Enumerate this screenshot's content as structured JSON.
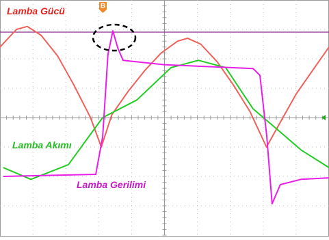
{
  "chart_data": {
    "type": "line",
    "xlim": [
      0,
      10
    ],
    "ylim": [
      -4,
      4
    ],
    "series": [
      {
        "name": "Lamba Gücü",
        "color": "#f0605a",
        "x": [
          0,
          0.5,
          0.83,
          1.25,
          1.75,
          2.25,
          2.75,
          3.08,
          3.4,
          3.9,
          4.4,
          4.9,
          5.4,
          5.7,
          6.1,
          6.6,
          7.1,
          7.6,
          8.1,
          8.5,
          9.0,
          9.5,
          10
        ],
        "values": [
          2.4,
          3.0,
          3.1,
          2.8,
          2.1,
          1.1,
          0.0,
          -1.0,
          0.1,
          0.9,
          1.6,
          2.2,
          2.6,
          2.7,
          2.5,
          1.9,
          1.1,
          0.2,
          -1.0,
          -0.2,
          0.8,
          1.6,
          2.4
        ]
      },
      {
        "name": "Lamba Akımı",
        "color": "#22cc22",
        "x": [
          0.1,
          0.94,
          2.08,
          3.12,
          4.16,
          5.2,
          6.03,
          6.86,
          7.69,
          8.32,
          9.15,
          10
        ],
        "values": [
          -1.7,
          -2.1,
          -1.6,
          0.0,
          0.6,
          1.7,
          1.95,
          1.7,
          0.3,
          -0.3,
          -1.1,
          -1.7
        ]
      },
      {
        "name": "Lamba Gerilimi",
        "color": "#e81ee8",
        "x": [
          0.1,
          2.91,
          3.12,
          3.28,
          3.43,
          3.58,
          3.74,
          4.99,
          7.69,
          7.9,
          8.11,
          8.27,
          8.52,
          9.15,
          10
        ],
        "values": [
          -2.0,
          -1.93,
          -0.65,
          2.14,
          2.95,
          2.37,
          1.95,
          1.8,
          1.67,
          1.44,
          -0.65,
          -2.93,
          -2.28,
          -2.1,
          -2.05
        ]
      }
    ],
    "marker": "B"
  }
}
